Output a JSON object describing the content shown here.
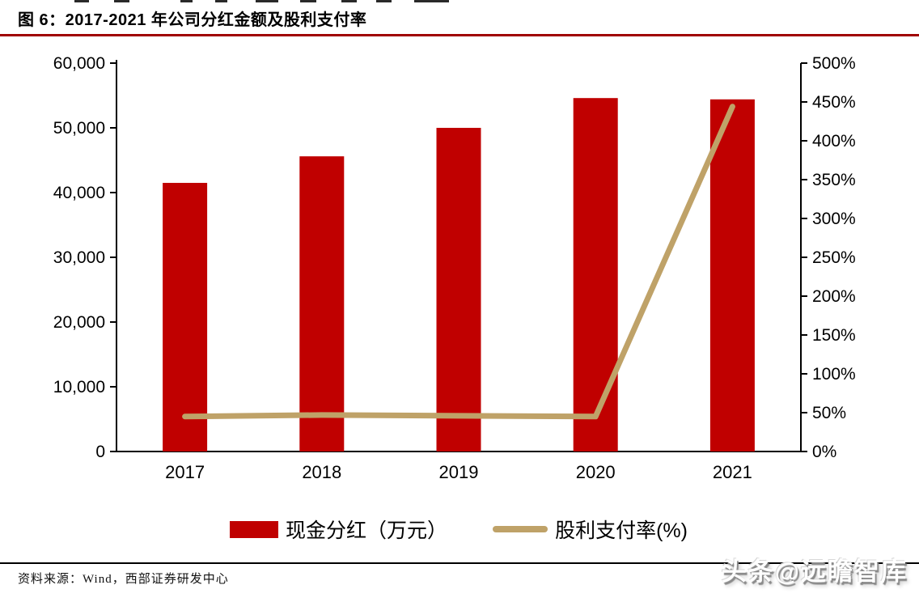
{
  "title": "图 6：2017-2021 年公司分红金额及股利支付率",
  "source_note": "资料来源：Wind，西部证券研发中心",
  "watermark": "头条@远瞻智库",
  "colors": {
    "bar": "#c00000",
    "line": "#bfa268",
    "axis": "#000000",
    "title_rule": "#a00000"
  },
  "legend": [
    {
      "label": "现金分红（万元）",
      "type": "bar"
    },
    {
      "label": "股利支付率(%)",
      "type": "line"
    }
  ],
  "chart_data": {
    "type": "bar+line",
    "title": "2017-2021 年公司分红金额及股利支付率",
    "categories": [
      "2017",
      "2018",
      "2019",
      "2020",
      "2021"
    ],
    "series": [
      {
        "name": "现金分红（万元）",
        "type": "bar",
        "axis": "left",
        "values": [
          41500,
          45600,
          50000,
          54600,
          54400
        ]
      },
      {
        "name": "股利支付率(%)",
        "type": "line",
        "axis": "right",
        "values": [
          45,
          47,
          46,
          45,
          444
        ]
      }
    ],
    "left_axis": {
      "label": "",
      "min": 0,
      "max": 60000,
      "ticks": [
        "0",
        "10,000",
        "20,000",
        "30,000",
        "40,000",
        "50,000",
        "60,000"
      ]
    },
    "right_axis": {
      "label": "",
      "min": 0,
      "max": 500,
      "ticks": [
        "0%",
        "50%",
        "100%",
        "150%",
        "200%",
        "250%",
        "300%",
        "350%",
        "400%",
        "450%",
        "500%"
      ]
    },
    "grid": false,
    "legend_position": "bottom"
  }
}
